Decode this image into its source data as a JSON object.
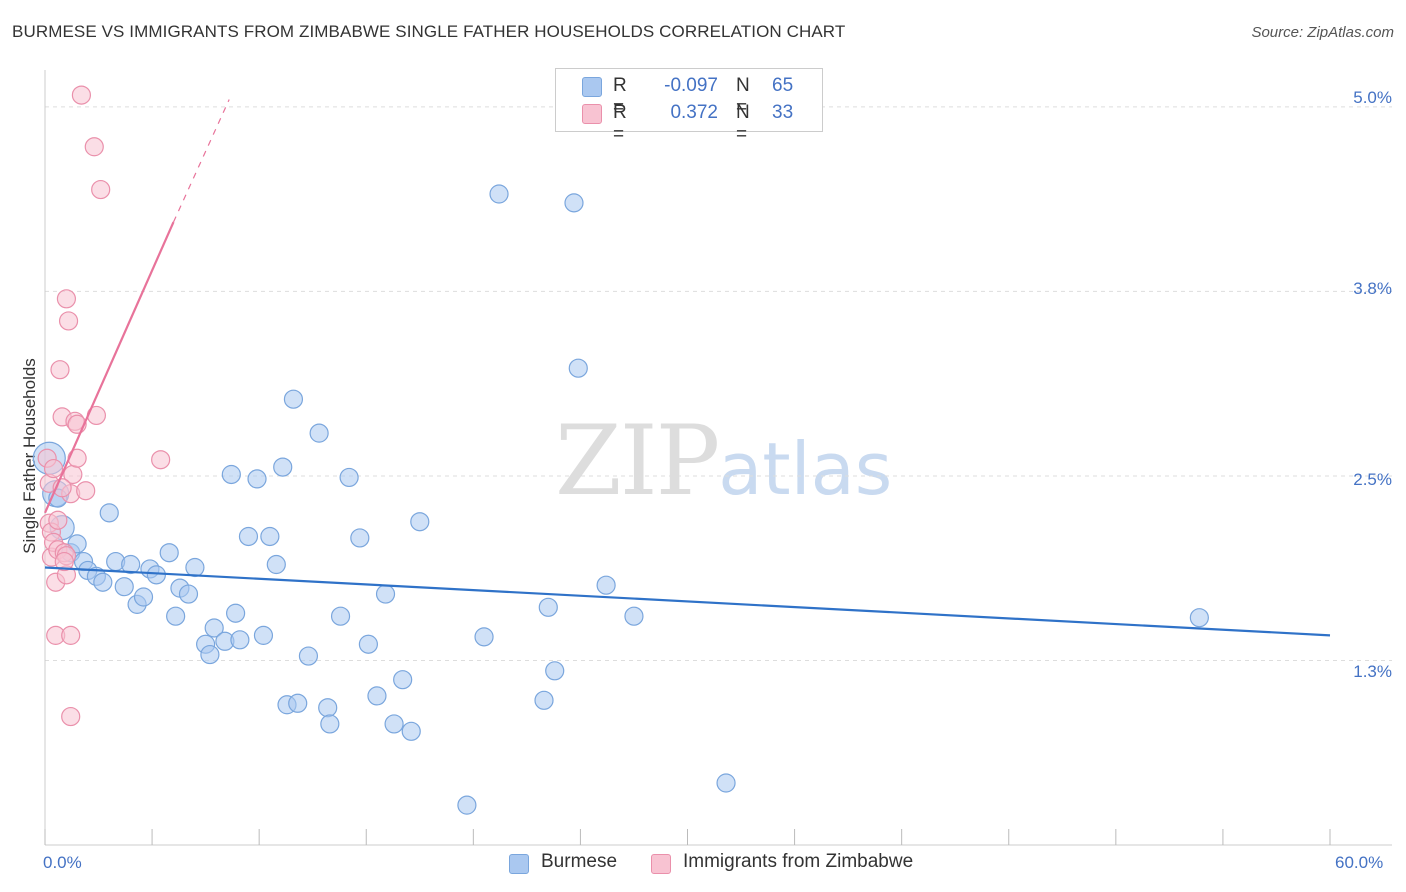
{
  "header": {
    "title": "BURMESE VS IMMIGRANTS FROM ZIMBABWE SINGLE FATHER HOUSEHOLDS CORRELATION CHART",
    "source": "Source: ZipAtlas.com"
  },
  "watermark": {
    "zip": "ZIP",
    "atlas": "atlas"
  },
  "legend": {
    "rows": [
      {
        "r_label": "R =",
        "r_value": "-0.097",
        "n_label": "N =",
        "n_value": "65",
        "color": "#a9c6ee"
      },
      {
        "r_label": "R =",
        "r_value": "0.372",
        "n_label": "N =",
        "n_value": "33",
        "color": "#f6b9cb"
      }
    ]
  },
  "bottom_legend": {
    "burmese": "Burmese",
    "zimbabwe": "Immigrants from Zimbabwe"
  },
  "colors": {
    "burmese_fill": "#aac8f0",
    "burmese_stroke": "#7aa6dd",
    "burmese_line": "#2f72c8",
    "zimbabwe_fill": "#f8c3d2",
    "zimbabwe_stroke": "#ea90ab",
    "zimbabwe_line": "#e8739a",
    "tick_label": "#4472c4",
    "grid": "#dddddd"
  },
  "chart_data": {
    "type": "scatter",
    "title": "BURMESE VS IMMIGRANTS FROM ZIMBABWE SINGLE FATHER HOUSEHOLDS CORRELATION CHART",
    "xlabel": "",
    "ylabel": "Single Father Households",
    "xlim": [
      0,
      60
    ],
    "ylim": [
      0,
      5.25
    ],
    "x_tick_labels": [
      "0.0%",
      "60.0%"
    ],
    "y_ticks": [
      1.25,
      2.5,
      3.75,
      5.0
    ],
    "y_tick_labels": [
      "1.3%",
      "2.5%",
      "3.8%",
      "5.0%"
    ],
    "grid": true,
    "legend_position": "top-center",
    "series": [
      {
        "name": "Burmese",
        "trend": {
          "x": [
            0,
            60
          ],
          "y": [
            1.88,
            1.42
          ]
        },
        "points": [
          {
            "x": 0.2,
            "y": 2.62,
            "s": 16
          },
          {
            "x": 0.5,
            "y": 2.38,
            "s": 13
          },
          {
            "x": 0.8,
            "y": 2.15,
            "s": 12
          },
          {
            "x": 1.2,
            "y": 1.98,
            "s": 9
          },
          {
            "x": 1.5,
            "y": 2.04,
            "s": 9
          },
          {
            "x": 1.8,
            "y": 1.92,
            "s": 9
          },
          {
            "x": 2.0,
            "y": 1.86,
            "s": 9
          },
          {
            "x": 2.4,
            "y": 1.82,
            "s": 9
          },
          {
            "x": 2.7,
            "y": 1.78,
            "s": 9
          },
          {
            "x": 3.0,
            "y": 2.25,
            "s": 9
          },
          {
            "x": 3.3,
            "y": 1.92,
            "s": 9
          },
          {
            "x": 3.7,
            "y": 1.75,
            "s": 9
          },
          {
            "x": 4.0,
            "y": 1.9,
            "s": 9
          },
          {
            "x": 4.3,
            "y": 1.63,
            "s": 9
          },
          {
            "x": 4.6,
            "y": 1.68,
            "s": 9
          },
          {
            "x": 4.9,
            "y": 1.87,
            "s": 9
          },
          {
            "x": 5.2,
            "y": 1.83,
            "s": 9
          },
          {
            "x": 5.8,
            "y": 1.98,
            "s": 9
          },
          {
            "x": 6.1,
            "y": 1.55,
            "s": 9
          },
          {
            "x": 6.3,
            "y": 1.74,
            "s": 9
          },
          {
            "x": 6.7,
            "y": 1.7,
            "s": 9
          },
          {
            "x": 7.0,
            "y": 1.88,
            "s": 9
          },
          {
            "x": 7.5,
            "y": 1.36,
            "s": 9
          },
          {
            "x": 7.7,
            "y": 1.29,
            "s": 9
          },
          {
            "x": 7.9,
            "y": 1.47,
            "s": 9
          },
          {
            "x": 8.4,
            "y": 1.38,
            "s": 9
          },
          {
            "x": 8.7,
            "y": 2.51,
            "s": 9
          },
          {
            "x": 8.9,
            "y": 1.57,
            "s": 9
          },
          {
            "x": 9.1,
            "y": 1.39,
            "s": 9
          },
          {
            "x": 9.5,
            "y": 2.09,
            "s": 9
          },
          {
            "x": 9.9,
            "y": 2.48,
            "s": 9
          },
          {
            "x": 10.2,
            "y": 1.42,
            "s": 9
          },
          {
            "x": 10.5,
            "y": 2.09,
            "s": 9
          },
          {
            "x": 10.8,
            "y": 1.9,
            "s": 9
          },
          {
            "x": 11.1,
            "y": 2.56,
            "s": 9
          },
          {
            "x": 11.3,
            "y": 0.95,
            "s": 9
          },
          {
            "x": 11.6,
            "y": 3.02,
            "s": 9
          },
          {
            "x": 11.8,
            "y": 0.96,
            "s": 9
          },
          {
            "x": 12.3,
            "y": 1.28,
            "s": 9
          },
          {
            "x": 12.8,
            "y": 2.79,
            "s": 9
          },
          {
            "x": 13.2,
            "y": 0.93,
            "s": 9
          },
          {
            "x": 13.3,
            "y": 0.82,
            "s": 9
          },
          {
            "x": 13.8,
            "y": 1.55,
            "s": 9
          },
          {
            "x": 14.2,
            "y": 2.49,
            "s": 9
          },
          {
            "x": 14.7,
            "y": 2.08,
            "s": 9
          },
          {
            "x": 15.1,
            "y": 1.36,
            "s": 9
          },
          {
            "x": 15.5,
            "y": 1.01,
            "s": 9
          },
          {
            "x": 15.9,
            "y": 1.7,
            "s": 9
          },
          {
            "x": 16.3,
            "y": 0.82,
            "s": 9
          },
          {
            "x": 16.7,
            "y": 1.12,
            "s": 9
          },
          {
            "x": 17.1,
            "y": 0.77,
            "s": 9
          },
          {
            "x": 17.5,
            "y": 2.19,
            "s": 9
          },
          {
            "x": 19.7,
            "y": 0.27,
            "s": 9
          },
          {
            "x": 20.5,
            "y": 1.41,
            "s": 9
          },
          {
            "x": 21.2,
            "y": 4.41,
            "s": 9
          },
          {
            "x": 23.3,
            "y": 0.98,
            "s": 9
          },
          {
            "x": 23.5,
            "y": 1.61,
            "s": 9
          },
          {
            "x": 23.8,
            "y": 1.18,
            "s": 9
          },
          {
            "x": 24.7,
            "y": 4.35,
            "s": 9
          },
          {
            "x": 24.9,
            "y": 3.23,
            "s": 9
          },
          {
            "x": 26.2,
            "y": 1.76,
            "s": 9
          },
          {
            "x": 27.5,
            "y": 1.55,
            "s": 9
          },
          {
            "x": 31.8,
            "y": 0.42,
            "s": 9
          },
          {
            "x": 53.9,
            "y": 1.54,
            "s": 9
          },
          {
            "x": 0.6,
            "y": 2.35,
            "s": 9
          }
        ]
      },
      {
        "name": "Immigrants from Zimbabwe",
        "trend": {
          "x": [
            0,
            6.0
          ],
          "y": [
            2.25,
            4.22
          ]
        },
        "trend_dashed": {
          "x": [
            6.0,
            8.6
          ],
          "y": [
            4.22,
            5.05
          ]
        },
        "points": [
          {
            "x": 0.1,
            "y": 2.62,
            "s": 9
          },
          {
            "x": 0.2,
            "y": 2.45,
            "s": 9
          },
          {
            "x": 0.2,
            "y": 2.18,
            "s": 9
          },
          {
            "x": 0.3,
            "y": 2.12,
            "s": 9
          },
          {
            "x": 0.3,
            "y": 1.95,
            "s": 9
          },
          {
            "x": 0.4,
            "y": 2.05,
            "s": 9
          },
          {
            "x": 0.5,
            "y": 1.78,
            "s": 9
          },
          {
            "x": 0.5,
            "y": 1.42,
            "s": 9
          },
          {
            "x": 0.6,
            "y": 2.0,
            "s": 9
          },
          {
            "x": 0.7,
            "y": 3.22,
            "s": 9
          },
          {
            "x": 0.8,
            "y": 2.9,
            "s": 9
          },
          {
            "x": 0.9,
            "y": 1.98,
            "s": 9
          },
          {
            "x": 1.0,
            "y": 3.7,
            "s": 9
          },
          {
            "x": 1.0,
            "y": 1.83,
            "s": 9
          },
          {
            "x": 1.1,
            "y": 3.55,
            "s": 9
          },
          {
            "x": 1.2,
            "y": 2.38,
            "s": 9
          },
          {
            "x": 1.3,
            "y": 2.51,
            "s": 9
          },
          {
            "x": 1.4,
            "y": 2.87,
            "s": 9
          },
          {
            "x": 1.5,
            "y": 2.85,
            "s": 9
          },
          {
            "x": 1.5,
            "y": 2.62,
            "s": 9
          },
          {
            "x": 1.9,
            "y": 2.4,
            "s": 9
          },
          {
            "x": 2.3,
            "y": 4.73,
            "s": 9
          },
          {
            "x": 2.4,
            "y": 2.91,
            "s": 9
          },
          {
            "x": 2.6,
            "y": 4.44,
            "s": 9
          },
          {
            "x": 1.7,
            "y": 5.08,
            "s": 9
          },
          {
            "x": 5.4,
            "y": 2.61,
            "s": 9
          },
          {
            "x": 1.2,
            "y": 1.42,
            "s": 9
          },
          {
            "x": 1.2,
            "y": 0.87,
            "s": 9
          },
          {
            "x": 0.8,
            "y": 2.42,
            "s": 9
          },
          {
            "x": 1.0,
            "y": 1.96,
            "s": 9
          },
          {
            "x": 0.4,
            "y": 2.55,
            "s": 9
          },
          {
            "x": 0.6,
            "y": 2.2,
            "s": 9
          },
          {
            "x": 0.9,
            "y": 1.92,
            "s": 9
          }
        ]
      }
    ]
  }
}
